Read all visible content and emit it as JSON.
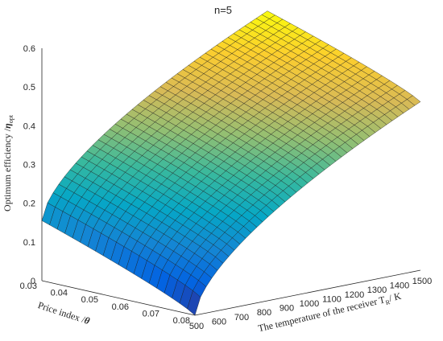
{
  "chart_data": {
    "type": "surface",
    "title": "n=5",
    "xlabel": {
      "main": "The temperature of the receiver T",
      "sub": "R",
      "tail": "/ K"
    },
    "ylabel": {
      "main": "Price index /",
      "symbol": "θ"
    },
    "zlabel": {
      "main": "Optimum efficiency /",
      "symbol": "η",
      "sub": "opt"
    },
    "x_ticks": [
      500,
      600,
      700,
      800,
      900,
      1000,
      1100,
      1200,
      1300,
      1400,
      1500
    ],
    "x_tick_labels": [
      "500",
      "600",
      "700",
      "800",
      "900",
      "1000",
      "1100",
      "1200",
      "1300",
      "1400",
      "1500"
    ],
    "y_ticks": [
      0.03,
      0.04,
      0.05,
      0.06,
      0.07,
      0.08
    ],
    "y_tick_labels": [
      "0.03",
      "0.04",
      "0.05",
      "0.06",
      "0.07",
      "0.08"
    ],
    "z_ticks": [
      0,
      0.1,
      0.2,
      0.3,
      0.4,
      0.5,
      0.6
    ],
    "z_tick_labels": [
      "0",
      "0.1",
      "0.2",
      "0.3",
      "0.4",
      "0.5",
      "0.6"
    ],
    "xlim": [
      500,
      1500
    ],
    "ylim": [
      0.03,
      0.08
    ],
    "zlim": [
      0,
      0.6
    ],
    "corner_values": {
      "T500_theta003": 0.155,
      "T500_theta008": 0.0,
      "T1500_theta003": 0.58,
      "T1500_theta008": 0.435
    },
    "grid_x_count": 40,
    "grid_y_count": 20,
    "colormap": "parula",
    "colormap_stops": [
      "#352a87",
      "#0363e1",
      "#1485d4",
      "#06a7c6",
      "#38b99e",
      "#92bf73",
      "#d9ba56",
      "#fcce2e",
      "#f9fb0e"
    ]
  }
}
